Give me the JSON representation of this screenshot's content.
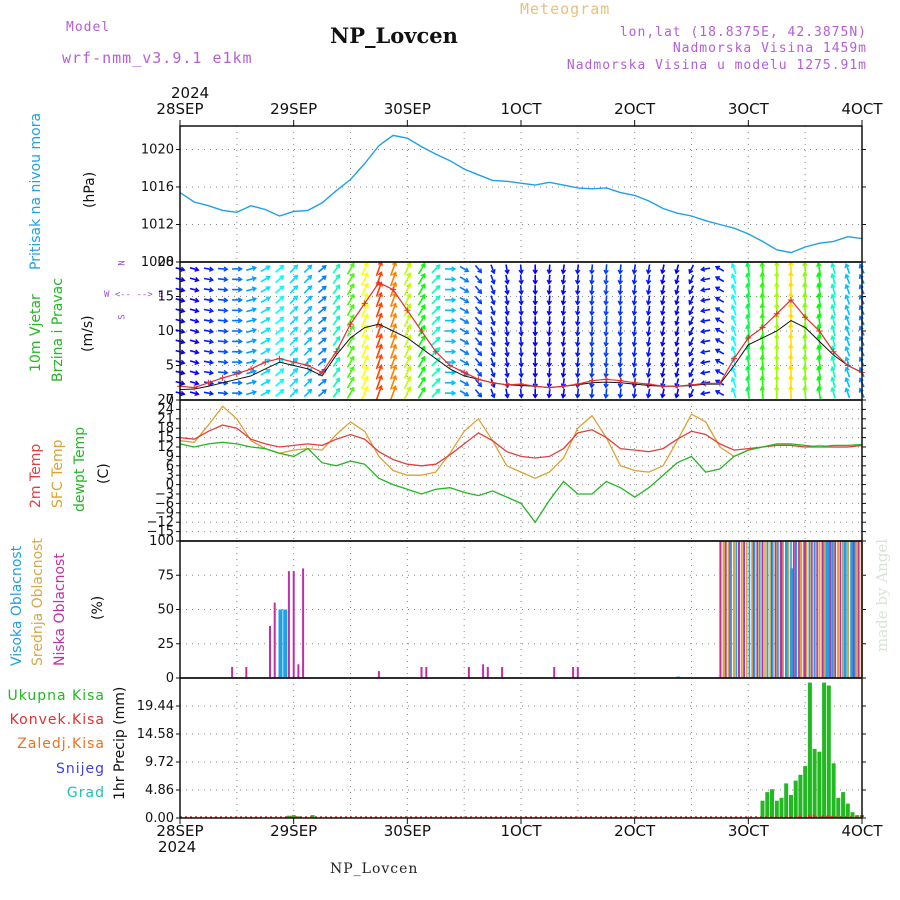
{
  "header": {
    "model_label": "Model",
    "model_name": "wrf-nmm_v3.9.1 e1km",
    "station": "NP_Lovcen",
    "meteogram": "Meteogram",
    "lonlat": "lon,lat (18.8375E, 42.3875N)",
    "elevation": "Nadmorska Visina 1459m",
    "model_elevation": "Nadmorska Visina u modelu 1275.91m",
    "year_top": "2024",
    "year_bottom": "2024",
    "footer_station": "NP_Lovcen",
    "credit": "made by Angel"
  },
  "time_axis": {
    "labels": [
      "28SEP",
      "29SEP",
      "30SEP",
      "1OCT",
      "2OCT",
      "3OCT",
      "4OCT"
    ],
    "hours": [
      0,
      24,
      48,
      72,
      96,
      120,
      144
    ]
  },
  "colors": {
    "pressure": "#1ea1e6",
    "wind_speed": "#e03030",
    "wind_gust_dark": "#111111",
    "temp_2m": "#e04040",
    "temp_sfc": "#e0a030",
    "dewpoint": "#22b822",
    "cloud_high": "#1ea1e6",
    "cloud_mid": "#d4a848",
    "cloud_low": "#c02fa8",
    "precip_total": "#22b822",
    "precip_conv": "#e03030",
    "precip_frozen": "#ee7020",
    "snow": "#4040dd",
    "graupel": "#22c0b0",
    "grid": "#888888"
  },
  "chart_data": [
    {
      "type": "line",
      "name": "pressure",
      "ylabel_lines": [
        "Pritisak na nivou mora",
        "(hPa)"
      ],
      "ylim": [
        1008,
        1022.5
      ],
      "yticks": [
        1008,
        1012,
        1016,
        1020
      ],
      "x": [
        0,
        3,
        6,
        9,
        12,
        15,
        18,
        21,
        24,
        27,
        30,
        33,
        36,
        39,
        42,
        45,
        48,
        51,
        54,
        57,
        60,
        63,
        66,
        69,
        72,
        75,
        78,
        81,
        84,
        87,
        90,
        93,
        96,
        99,
        102,
        105,
        108,
        111,
        114,
        117,
        120,
        123,
        126,
        129,
        132,
        135,
        138,
        141,
        144
      ],
      "values": [
        1015.4,
        1014.4,
        1014.0,
        1013.5,
        1013.3,
        1014.0,
        1013.6,
        1012.9,
        1013.4,
        1013.5,
        1014.3,
        1015.6,
        1016.8,
        1018.5,
        1020.4,
        1021.5,
        1021.2,
        1020.3,
        1019.5,
        1018.8,
        1017.9,
        1017.3,
        1016.7,
        1016.6,
        1016.4,
        1016.2,
        1016.5,
        1016.2,
        1015.9,
        1015.8,
        1015.9,
        1015.4,
        1015.1,
        1014.5,
        1013.7,
        1013.2,
        1012.9,
        1012.4,
        1012.0,
        1011.6,
        1011.0,
        1010.2,
        1009.3,
        1009.0,
        1009.6,
        1010.0,
        1010.2,
        1010.7,
        1010.5
      ]
    },
    {
      "type": "line",
      "name": "wind",
      "ylabel_lines": [
        "10m Vjetar",
        "Brzina i Pravac",
        "(m/s)"
      ],
      "direction_legend": [
        "N",
        "^",
        "|",
        "W <-- --> E",
        "|",
        "v",
        "S"
      ],
      "ylim": [
        0,
        20
      ],
      "yticks": [
        0,
        5,
        10,
        15,
        20
      ],
      "x": [
        0,
        3,
        6,
        9,
        12,
        15,
        18,
        21,
        24,
        27,
        30,
        33,
        36,
        39,
        42,
        45,
        48,
        51,
        54,
        57,
        60,
        63,
        66,
        69,
        72,
        75,
        78,
        81,
        84,
        87,
        90,
        93,
        96,
        99,
        102,
        105,
        108,
        111,
        114,
        117,
        120,
        123,
        126,
        129,
        132,
        135,
        138,
        141,
        144
      ],
      "speed": [
        2.0,
        1.8,
        2.5,
        3.2,
        3.8,
        4.5,
        5.5,
        6.0,
        5.5,
        5.0,
        4.0,
        7.0,
        11.0,
        14.0,
        17.0,
        16.0,
        13.0,
        10.0,
        7.0,
        5.0,
        4.0,
        3.0,
        2.5,
        2.2,
        2.3,
        2.0,
        1.8,
        2.0,
        2.3,
        2.8,
        3.0,
        2.8,
        2.5,
        2.3,
        2.0,
        2.0,
        2.2,
        2.4,
        2.4,
        6.0,
        9.0,
        10.5,
        12.5,
        14.5,
        12.0,
        10.0,
        7.0,
        5.0,
        4.0
      ],
      "gust": [
        1.5,
        1.6,
        2.0,
        2.5,
        3.0,
        3.5,
        4.5,
        5.5,
        5.0,
        4.5,
        3.5,
        6.5,
        9.0,
        10.5,
        11.0,
        10.0,
        9.0,
        7.5,
        6.0,
        4.5,
        3.5,
        3.0,
        2.5,
        2.2,
        2.1,
        2.0,
        1.8,
        2.0,
        2.2,
        2.5,
        2.6,
        2.5,
        2.3,
        2.1,
        2.0,
        2.0,
        2.1,
        2.3,
        2.3,
        5.0,
        8.0,
        9.0,
        10.0,
        11.5,
        10.5,
        8.5,
        6.5,
        5.0,
        4.0
      ],
      "direction": [
        285,
        285,
        280,
        275,
        270,
        255,
        240,
        230,
        225,
        225,
        230,
        215,
        210,
        205,
        200,
        200,
        205,
        210,
        225,
        270,
        300,
        320,
        340,
        350,
        355,
        0,
        5,
        8,
        6,
        5,
        5,
        6,
        8,
        10,
        12,
        15,
        25,
        80,
        120,
        160,
        170,
        175,
        180,
        178,
        175,
        170,
        165,
        160,
        155
      ]
    },
    {
      "type": "line",
      "name": "temperature",
      "ylabel_lines": [
        "2m Temp",
        "SFC Temp",
        "dewpt Temp",
        "(C)"
      ],
      "ylim": [
        -18,
        27
      ],
      "yticks": [
        -15,
        -12,
        -9,
        -6,
        -3,
        0,
        3,
        6,
        9,
        12,
        15,
        18,
        21,
        24,
        27
      ],
      "x": [
        0,
        3,
        6,
        9,
        12,
        15,
        18,
        21,
        24,
        27,
        30,
        33,
        36,
        39,
        42,
        45,
        48,
        51,
        54,
        57,
        60,
        63,
        66,
        69,
        72,
        75,
        78,
        81,
        84,
        87,
        90,
        93,
        96,
        99,
        102,
        105,
        108,
        111,
        114,
        117,
        120,
        123,
        126,
        129,
        132,
        135,
        138,
        141,
        144
      ],
      "series": [
        {
          "name": "2m Temp",
          "values": [
            15.0,
            14.5,
            17.0,
            19.0,
            18.0,
            14.5,
            13.0,
            12.0,
            12.5,
            13.0,
            12.5,
            14.5,
            16.0,
            14.5,
            10.5,
            8.0,
            6.5,
            6.0,
            6.5,
            9.5,
            13.0,
            16.5,
            14.0,
            10.5,
            9.0,
            8.5,
            9.0,
            11.5,
            16.5,
            17.5,
            15.0,
            11.5,
            11.0,
            10.5,
            11.5,
            14.5,
            17.0,
            16.0,
            13.0,
            11.0,
            11.5,
            12.0,
            12.5,
            12.5,
            12.0,
            12.0,
            12.0,
            12.0,
            12.5
          ]
        },
        {
          "name": "SFC Temp",
          "values": [
            14.0,
            13.5,
            19.0,
            25.0,
            21.0,
            14.0,
            11.5,
            10.0,
            11.0,
            11.5,
            11.0,
            16.0,
            20.0,
            17.0,
            9.0,
            4.5,
            3.0,
            3.0,
            4.0,
            10.0,
            17.0,
            21.0,
            14.0,
            6.0,
            4.0,
            2.0,
            4.0,
            8.5,
            18.0,
            22.0,
            15.0,
            6.0,
            4.5,
            4.0,
            6.0,
            14.0,
            22.5,
            20.0,
            12.0,
            9.0,
            11.0,
            12.0,
            12.5,
            12.5,
            12.0,
            12.5,
            12.0,
            12.0,
            12.5
          ]
        },
        {
          "name": "dewpt Temp",
          "values": [
            13.0,
            12.0,
            13.0,
            13.5,
            13.0,
            12.0,
            11.5,
            10.0,
            9.0,
            11.5,
            7.0,
            6.0,
            7.5,
            6.5,
            2.0,
            0.0,
            -1.5,
            -3.0,
            -1.5,
            -1.0,
            -2.5,
            -3.5,
            -2.0,
            -4.0,
            -6.0,
            -12.0,
            -5.0,
            1.0,
            -3.0,
            -3.0,
            1.0,
            -1.0,
            -4.0,
            -1.0,
            3.0,
            7.0,
            9.0,
            4.0,
            5.0,
            9.0,
            11.0,
            12.0,
            13.0,
            13.0,
            12.5,
            12.0,
            12.5,
            12.5,
            12.8
          ]
        }
      ]
    },
    {
      "type": "bar",
      "name": "clouds",
      "ylabel_lines": [
        "Visoka Oblacnost",
        "Srednja Oblacnost",
        "Niska Oblacnost",
        "(%)"
      ],
      "ylim": [
        0,
        100
      ],
      "yticks": [
        0,
        25,
        50,
        75,
        100
      ],
      "overcast_from_hour": 114,
      "overcast_to_hour": 144,
      "series": [
        {
          "name": "Visoka Oblacnost",
          "x": [
            21,
            22,
            105,
            128,
            129,
            136,
            137,
            140,
            142
          ],
          "values": [
            50,
            50,
            1,
            100,
            80,
            100,
            100,
            100,
            100
          ]
        },
        {
          "name": "Srednja Oblacnost",
          "x": [
            114,
            115,
            117,
            119,
            122,
            124,
            126,
            131,
            133,
            135,
            138,
            139,
            141,
            143,
            144
          ],
          "values": [
            100,
            100,
            100,
            100,
            100,
            100,
            100,
            100,
            100,
            100,
            100,
            100,
            100,
            100,
            100
          ]
        },
        {
          "name": "Niska Oblacnost",
          "x": [
            11,
            14,
            19,
            20,
            23,
            24,
            25,
            26,
            42,
            51,
            52,
            61,
            64,
            65,
            68,
            79,
            83,
            84,
            116,
            118,
            121,
            123,
            125,
            127,
            130,
            132,
            134
          ],
          "values": [
            8,
            8,
            38,
            55,
            78,
            78,
            10,
            80,
            5,
            8,
            8,
            8,
            10,
            8,
            8,
            8,
            8,
            8,
            100,
            100,
            100,
            100,
            100,
            100,
            100,
            100,
            100
          ]
        }
      ]
    },
    {
      "type": "bar",
      "name": "precipitation",
      "ylabel_lines": [
        "1hr Precip (mm)"
      ],
      "legend": [
        "Ukupna Kisa",
        "Konvek.Kisa",
        "Zaledj.Kisa",
        "Snijeg",
        "Grad"
      ],
      "ylim": [
        0,
        24.3
      ],
      "yticks": [
        0,
        4.86,
        9.72,
        14.58,
        19.44
      ],
      "series": [
        {
          "name": "Ukupna Kisa",
          "x": [
            23,
            24,
            25,
            28,
            123,
            124,
            125,
            126,
            127,
            128,
            129,
            130,
            131,
            132,
            133,
            134,
            135,
            136,
            137,
            138,
            139,
            140,
            141,
            142,
            143,
            144
          ],
          "values": [
            0.4,
            0.5,
            0.3,
            0.5,
            3.0,
            4.5,
            5.0,
            3.0,
            3.5,
            6.0,
            4.0,
            6.5,
            7.5,
            9.0,
            23.5,
            12.0,
            11.5,
            23.5,
            23.0,
            9.5,
            3.5,
            4.5,
            2.5,
            1.0,
            0.5,
            0.5
          ]
        },
        {
          "name": "Konvek.Kisa",
          "x": [
            131,
            133,
            134,
            136,
            137,
            138
          ],
          "values": [
            0.4,
            0.5,
            0.6,
            0.5,
            0.5,
            0.4
          ]
        }
      ]
    }
  ]
}
